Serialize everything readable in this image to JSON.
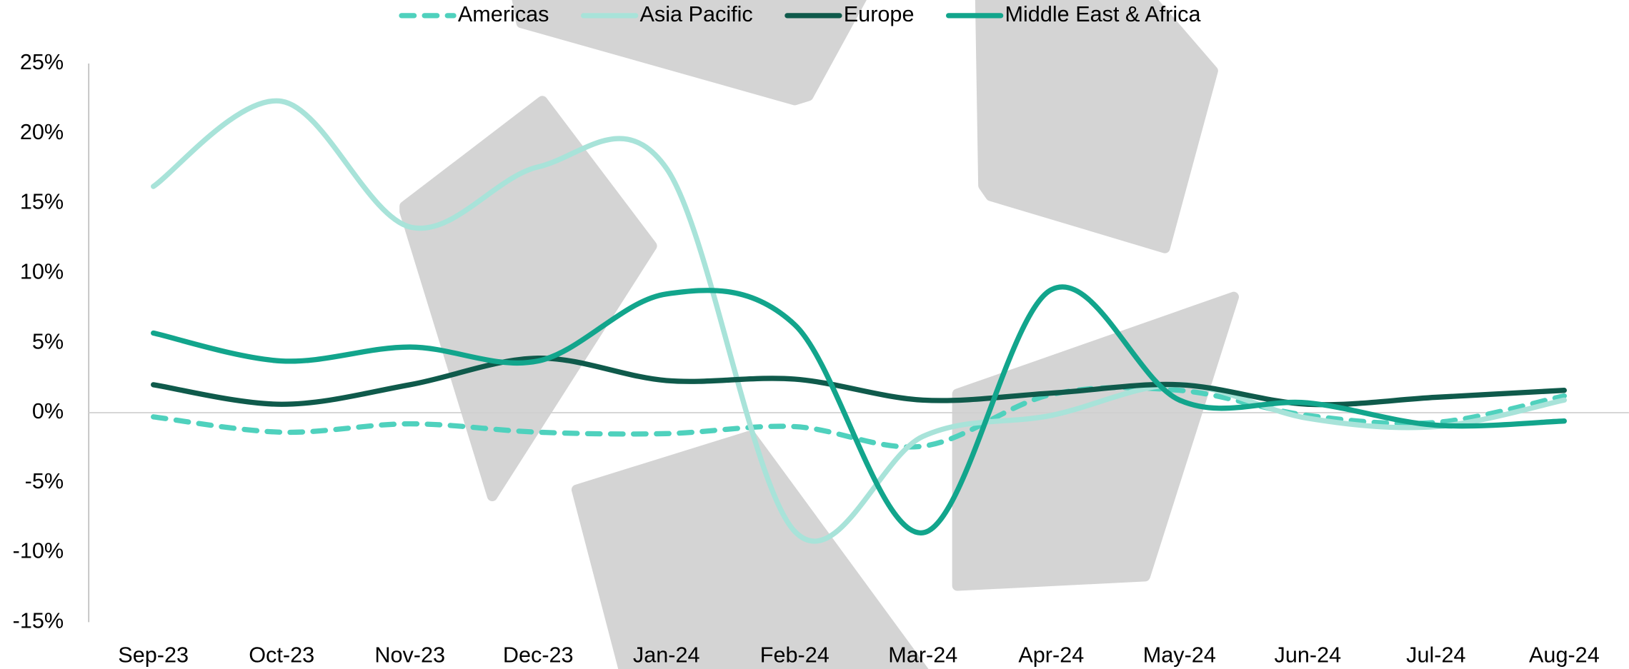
{
  "chart_data": {
    "type": "line",
    "categories": [
      "Sep-23",
      "Oct-23",
      "Nov-23",
      "Dec-23",
      "Jan-24",
      "Feb-24",
      "Mar-24",
      "Apr-24",
      "May-24",
      "Jun-24",
      "Jul-24",
      "Aug-24"
    ],
    "series": [
      {
        "name": "Americas",
        "color": "#4fd1bd",
        "dashed": true,
        "values": [
          -0.3,
          -1.4,
          -0.8,
          -1.4,
          -1.5,
          -1.0,
          -2.4,
          1.3,
          1.6,
          -0.2,
          -0.7,
          1.2
        ]
      },
      {
        "name": "Asia Pacific",
        "color": "#a8e3d9",
        "values": [
          16.2,
          22.3,
          13.3,
          17.6,
          17.5,
          -8.5,
          -1.7,
          -0.2,
          2.0,
          -0.4,
          -1.0,
          0.9
        ]
      },
      {
        "name": "Europe",
        "color": "#0f5a4b",
        "values": [
          2.0,
          0.6,
          2.0,
          3.9,
          2.3,
          2.4,
          0.9,
          1.4,
          2.0,
          0.6,
          1.1,
          1.6
        ]
      },
      {
        "name": "Middle East & Africa",
        "color": "#12a58c",
        "values": [
          5.7,
          3.7,
          4.7,
          3.7,
          8.5,
          6.3,
          -8.6,
          8.8,
          0.9,
          0.7,
          -0.9,
          -0.6
        ]
      }
    ],
    "ylim": [
      -15,
      25
    ],
    "yticks": [
      {
        "value": -15,
        "label": "-15%"
      },
      {
        "value": -10,
        "label": "-10%"
      },
      {
        "value": -5,
        "label": "-5%"
      },
      {
        "value": 0,
        "label": "0%"
      },
      {
        "value": 5,
        "label": "5%"
      },
      {
        "value": 10,
        "label": "10%"
      },
      {
        "value": 15,
        "label": "15%"
      },
      {
        "value": 20,
        "label": "20%"
      },
      {
        "value": 25,
        "label": "25%"
      }
    ],
    "legend": "top"
  }
}
